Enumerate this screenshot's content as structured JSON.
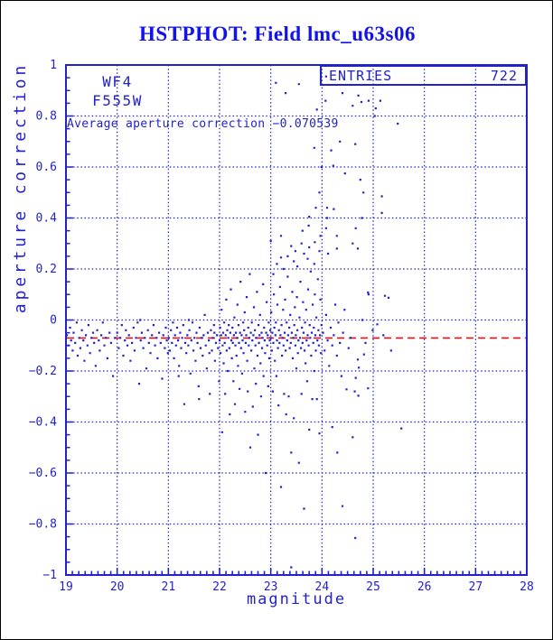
{
  "title": {
    "text": "HSTPHOT: Field lmc_u63s06",
    "color": "#1212ee"
  },
  "annotations": {
    "camera_chip": "WF4",
    "filter": "F555W",
    "average_text": "Average aperture correction −0.070539"
  },
  "stats_box": {
    "label": "ENTRIES",
    "value": "722"
  },
  "axes": {
    "x_label": "magnitude",
    "y_label": "aperture correction"
  },
  "colors": {
    "plot_blue": "#2222cc",
    "title_blue": "#1212ee",
    "avg_line_red": "#ee1111",
    "background": "#ffffff",
    "outer_border": "#000000"
  },
  "chart_data": {
    "type": "scatter",
    "title": "HSTPHOT: Field lmc_u63s06",
    "xlabel": "magnitude",
    "ylabel": "aperture correction",
    "xlim": [
      19,
      28
    ],
    "ylim": [
      -1,
      1
    ],
    "xticks": [
      19,
      20,
      21,
      22,
      23,
      24,
      25,
      26,
      27,
      28
    ],
    "xtick_labels": [
      "19",
      "20",
      "21",
      "22",
      "23",
      "24",
      "25",
      "26",
      "27",
      "28"
    ],
    "yticks": [
      1,
      0.8,
      0.6,
      0.4,
      0.2,
      0,
      -0.2,
      -0.4,
      -0.6,
      -0.8,
      -1
    ],
    "ytick_labels": [
      "1",
      "0.8",
      "0.6",
      "0.4",
      "0.2",
      "0",
      "−0.2",
      "−0.4",
      "−0.6",
      "−0.8",
      "−1"
    ],
    "x_minor_step": 0.125,
    "y_minor_step": 0.05,
    "grid": true,
    "legend": null,
    "entries": 722,
    "average_aperture_correction": -0.070539,
    "avg_line": {
      "y": -0.070539,
      "color": "#ee1111",
      "style": "dashed"
    },
    "point_color": "#2222cc",
    "points_xy": [
      19.02,
      -0.06,
      19.05,
      -0.1,
      19.08,
      -0.03,
      19.1,
      -0.08,
      19.13,
      -0.12,
      19.15,
      -0.05,
      19.18,
      -0.09,
      19.21,
      -0.01,
      19.23,
      -0.14,
      19.26,
      -0.07,
      19.28,
      -0.11,
      19.31,
      -0.04,
      19.34,
      -0.08,
      19.36,
      -0.16,
      19.39,
      -0.06,
      19.42,
      -0.1,
      19.44,
      -0.02,
      19.47,
      -0.13,
      19.5,
      -0.07,
      19.53,
      -0.05,
      19.55,
      -0.09,
      19.58,
      -0.18,
      19.61,
      -0.04,
      19.64,
      -0.08,
      19.66,
      -0.12,
      19.69,
      -0.06,
      19.72,
      -0.01,
      19.75,
      -0.1,
      19.78,
      -0.07,
      19.81,
      -0.15,
      19.85,
      -0.05,
      19.88,
      -0.09,
      19.92,
      -0.22,
      19.96,
      -0.07,
      20.0,
      -0.05,
      20.03,
      -0.11,
      20.06,
      -0.07,
      20.09,
      -0.02,
      20.12,
      -0.14,
      20.15,
      -0.08,
      20.17,
      -0.04,
      20.2,
      -0.1,
      20.23,
      -0.06,
      20.26,
      -0.16,
      20.29,
      -0.09,
      20.32,
      -0.03,
      20.34,
      -0.12,
      20.37,
      -0.07,
      20.4,
      -0.01,
      20.43,
      -0.25,
      20.46,
      -0.08,
      20.48,
      -0.05,
      20.51,
      -0.11,
      20.54,
      -0.07,
      20.57,
      -0.19,
      20.6,
      -0.04,
      20.62,
      -0.09,
      20.65,
      -0.13,
      20.68,
      -0.06,
      20.71,
      -0.02,
      20.74,
      -0.1,
      20.77,
      -0.07,
      20.79,
      -0.15,
      20.82,
      -0.05,
      20.85,
      -0.09,
      20.88,
      -0.23,
      20.9,
      -0.06,
      20.93,
      -0.11,
      20.95,
      -0.03,
      20.97,
      -0.08,
      20.99,
      -0.13,
      20.45,
      0.0,
      21.01,
      -0.07,
      21.03,
      -0.12,
      21.05,
      -0.04,
      21.07,
      -0.09,
      21.09,
      -0.01,
      21.11,
      -0.15,
      21.13,
      -0.06,
      21.15,
      -0.1,
      21.17,
      -0.03,
      21.19,
      -0.08,
      21.21,
      -0.18,
      21.23,
      -0.05,
      21.25,
      -0.11,
      21.27,
      -0.07,
      21.29,
      -0.02,
      21.31,
      -0.33,
      21.33,
      -0.09,
      21.35,
      -0.13,
      21.37,
      -0.06,
      21.39,
      -0.1,
      21.41,
      -0.04,
      21.43,
      -0.21,
      21.45,
      -0.08,
      21.47,
      -0.01,
      21.49,
      -0.12,
      21.51,
      -0.07,
      21.53,
      -0.16,
      21.55,
      -0.05,
      21.57,
      -0.09,
      21.59,
      -0.26,
      21.61,
      -0.03,
      21.63,
      -0.11,
      21.65,
      -0.07,
      21.67,
      -0.14,
      21.69,
      -0.06,
      21.71,
      0.02,
      21.73,
      -0.1,
      21.75,
      -0.19,
      21.77,
      -0.05,
      21.79,
      -0.08,
      21.81,
      -0.29,
      21.83,
      -0.04,
      21.85,
      -0.12,
      21.87,
      -0.07,
      21.89,
      -0.02,
      21.91,
      -0.16,
      21.93,
      -0.09,
      21.95,
      -0.06,
      21.97,
      -0.11,
      21.99,
      -0.24,
      21.4,
      0.0,
      21.6,
      -0.31,
      21.2,
      -0.22,
      21.8,
      -0.13,
      21.9,
      -0.05,
      22.0,
      -0.08,
      22.01,
      -0.03,
      22.02,
      -0.13,
      22.03,
      -0.06,
      22.04,
      0.04,
      22.05,
      -0.44,
      22.06,
      -0.1,
      22.07,
      -0.05,
      22.08,
      -0.17,
      22.09,
      -0.01,
      22.1,
      -0.09,
      22.11,
      -0.29,
      22.12,
      -0.06,
      22.13,
      0.08,
      22.14,
      -0.12,
      22.15,
      -0.04,
      22.16,
      -0.2,
      22.17,
      -0.07,
      22.18,
      -0.02,
      22.19,
      -0.11,
      22.2,
      -0.37,
      22.21,
      -0.05,
      22.22,
      0.12,
      22.23,
      -0.08,
      22.24,
      -0.15,
      22.25,
      -0.03,
      22.26,
      -0.09,
      22.27,
      -0.24,
      22.28,
      -0.06,
      22.29,
      0.01,
      22.3,
      -0.33,
      22.31,
      -0.1,
      22.32,
      -0.05,
      22.33,
      -0.14,
      22.34,
      -0.07,
      22.35,
      0.06,
      22.36,
      -0.18,
      22.37,
      -0.02,
      22.38,
      -0.09,
      22.39,
      -0.27,
      22.4,
      -0.05,
      22.41,
      0.15,
      22.42,
      -0.11,
      22.43,
      -0.06,
      22.44,
      -0.21,
      22.45,
      -0.08,
      22.46,
      -0.01,
      22.47,
      -0.13,
      22.48,
      -0.04,
      22.49,
      0.03,
      22.5,
      -0.36,
      22.51,
      -0.09,
      22.52,
      -0.06,
      22.53,
      0.09,
      22.54,
      -0.16,
      22.55,
      -0.28,
      22.56,
      -0.03,
      22.57,
      -0.1,
      22.58,
      -0.07,
      22.59,
      0.18,
      22.6,
      -0.5,
      22.61,
      -0.05,
      22.62,
      -0.12,
      22.63,
      -0.01,
      22.64,
      -0.08,
      22.65,
      -0.34,
      22.66,
      -0.06,
      22.67,
      0.05,
      22.68,
      -0.19,
      22.69,
      -0.04,
      22.7,
      -0.1,
      22.71,
      -0.25,
      22.72,
      -0.07,
      22.73,
      0.11,
      22.74,
      -0.14,
      22.75,
      -0.45,
      22.76,
      -0.02,
      22.77,
      -0.09,
      22.78,
      -0.06,
      22.79,
      0.02,
      22.8,
      -0.17,
      22.81,
      -0.3,
      22.82,
      -0.05,
      22.83,
      -0.11,
      22.84,
      -0.07,
      22.85,
      0.14,
      22.86,
      -0.22,
      22.87,
      -0.03,
      22.88,
      -0.08,
      22.89,
      -0.13,
      22.9,
      -0.6,
      22.91,
      -0.05,
      22.92,
      0.07,
      22.93,
      -0.1,
      22.94,
      -0.06,
      22.95,
      -0.26,
      22.96,
      -0.01,
      22.97,
      -0.15,
      22.98,
      -0.08,
      22.99,
      -0.04,
      23.0,
      -0.07,
      23.01,
      0.03,
      23.02,
      -0.12,
      23.03,
      -0.05,
      23.04,
      -0.28,
      23.05,
      -0.09,
      23.06,
      0.1,
      23.07,
      -0.03,
      23.08,
      -0.16,
      23.09,
      -0.06,
      23.1,
      -0.01,
      23.11,
      -0.22,
      23.12,
      -0.08,
      23.13,
      0.06,
      23.14,
      -0.11,
      23.15,
      -0.335,
      23.16,
      -0.04,
      23.17,
      -0.09,
      23.18,
      0.13,
      23.19,
      -0.06,
      23.2,
      -0.655,
      23.21,
      -0.02,
      23.22,
      -0.14,
      23.23,
      -0.07,
      23.24,
      0.04,
      23.25,
      -0.1,
      23.26,
      -0.29,
      23.27,
      -0.05,
      23.28,
      0.08,
      23.29,
      -0.12,
      23.3,
      -0.37,
      23.31,
      -0.01,
      23.32,
      -0.08,
      23.33,
      0.17,
      23.34,
      -0.06,
      23.35,
      -0.3,
      23.36,
      -0.03,
      23.37,
      -0.11,
      23.38,
      0.02,
      23.39,
      -0.09,
      23.4,
      -0.52,
      23.41,
      -0.05,
      23.42,
      0.11,
      23.43,
      -0.15,
      23.44,
      -0.07,
      23.45,
      -0.385,
      23.46,
      -0.02,
      23.47,
      0.05,
      23.48,
      -0.1,
      23.49,
      -0.06,
      23.5,
      -0.19,
      23.51,
      0.09,
      23.52,
      -0.04,
      23.53,
      -0.13,
      23.54,
      -0.08,
      23.55,
      -0.56,
      23.56,
      0.01,
      23.57,
      -0.07,
      23.58,
      0.15,
      23.59,
      -0.11,
      23.6,
      -0.29,
      23.61,
      -0.03,
      23.62,
      -0.09,
      23.63,
      0.07,
      23.64,
      -0.05,
      23.65,
      -0.74,
      23.66,
      -0.12,
      23.67,
      -0.01,
      23.68,
      -0.17,
      23.69,
      0.04,
      23.7,
      -0.08,
      23.71,
      -0.24,
      23.72,
      -0.06,
      23.73,
      0.12,
      23.74,
      -0.1,
      23.75,
      -0.43,
      23.76,
      -0.02,
      23.77,
      -0.07,
      23.78,
      0.19,
      23.79,
      -0.14,
      23.8,
      -0.05,
      23.81,
      -0.31,
      23.82,
      0.06,
      23.83,
      -0.09,
      23.84,
      -0.03,
      23.85,
      -0.2,
      23.86,
      0.1,
      23.87,
      -0.06,
      23.88,
      -0.12,
      23.89,
      0.01,
      23.9,
      -0.31,
      23.91,
      -0.08,
      23.92,
      0.16,
      23.93,
      -0.04,
      23.94,
      -0.1,
      23.95,
      -0.445,
      23.96,
      -0.06,
      23.97,
      0.08,
      23.98,
      -0.13,
      23.99,
      -0.02,
      23.4,
      -0.97,
      23.12,
      0.22,
      23.33,
      0.25,
      23.52,
      0.21,
      23.72,
      0.24,
      23.05,
      0.18,
      23.25,
      0.2,
      23.45,
      0.23,
      23.65,
      0.26,
      23.85,
      0.22,
      23.95,
      0.27,
      23.29,
      0.89,
      23.55,
      0.925,
      23.1,
      0.93,
      23.9,
      0.825,
      23.85,
      0.675,
      23.99,
      0.6,
      23.74,
      0.37,
      23.75,
      0.405,
      23.86,
      0.305,
      23.6,
      0.3,
      23.2,
      0.33,
      23.4,
      0.29,
      23.75,
      0.285,
      23.2,
      0.245,
      23.0,
      0.31,
      23.62,
      0.35,
      23.48,
      0.27,
      23.95,
      0.5,
      23.88,
      0.44,
      23.97,
      0.33,
      24.02,
      -0.05,
      24.05,
      -0.12,
      24.08,
      0.02,
      24.11,
      -0.08,
      24.14,
      -0.18,
      24.17,
      -0.03,
      24.2,
      -0.1,
      24.23,
      -0.06,
      24.26,
      0.06,
      24.29,
      -0.14,
      24.32,
      -0.01,
      24.35,
      -0.09,
      24.38,
      -0.22,
      24.41,
      -0.05,
      24.44,
      0.04,
      24.48,
      -0.272,
      24.52,
      -0.11,
      24.56,
      -0.07,
      24.64,
      -0.28,
      24.66,
      -0.227,
      24.7,
      -0.155,
      24.71,
      -0.297,
      24.72,
      -0.187,
      24.79,
      0.0,
      24.82,
      -0.135,
      24.85,
      -0.09,
      24.9,
      -0.268,
      24.9,
      0.108,
      24.91,
      0.1,
      24.99,
      -0.04,
      24.07,
      0.86,
      24.4,
      0.89,
      24.71,
      0.88,
      24.6,
      0.84,
      24.77,
      0.855,
      24.91,
      0.86,
      24.18,
      0.665,
      24.35,
      0.7,
      24.65,
      0.69,
      24.22,
      0.605,
      24.45,
      0.575,
      24.75,
      0.55,
      24.81,
      0.5,
      24.1,
      0.44,
      24.23,
      0.435,
      24.1,
      0.4,
      24.78,
      0.4,
      24.29,
      0.33,
      24.6,
      0.3,
      24.7,
      0.28,
      24.29,
      0.28,
      24.12,
      0.26,
      24.08,
      0.36,
      24.66,
      0.36,
      24.2,
      -0.42,
      24.6,
      -0.46,
      24.65,
      -0.855,
      24.4,
      -0.73,
      24.3,
      -0.52,
      25.05,
      0.83,
      25.14,
      0.86,
      25.03,
      0.8,
      25.48,
      0.77,
      25.17,
      0.485,
      25.17,
      0.42,
      25.23,
      0.095,
      25.3,
      0.087,
      25.08,
      -0.017,
      25.55,
      -0.425,
      25.2,
      -0.06,
      25.35,
      -0.12,
      24.08,
      0.955
    ]
  }
}
